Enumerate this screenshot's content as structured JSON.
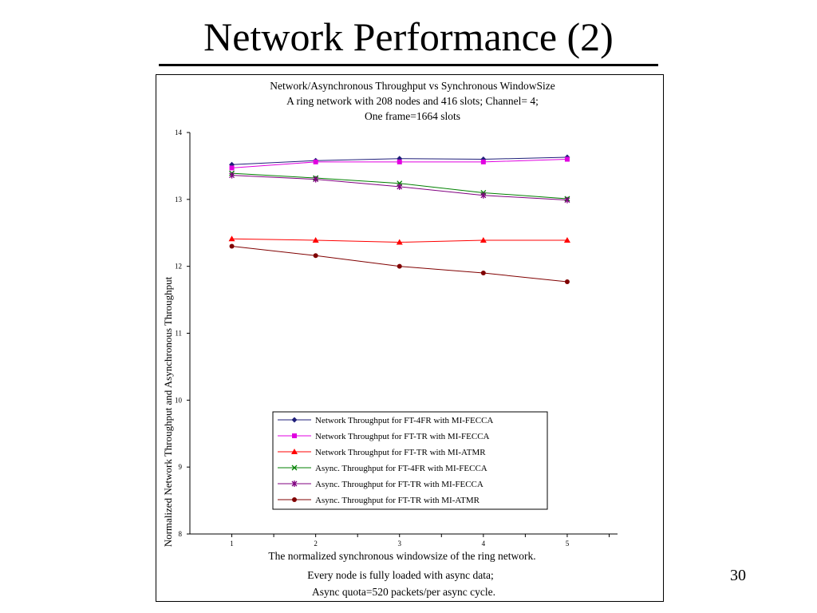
{
  "slide": {
    "title": "Network Performance (2)",
    "page_number": "30"
  },
  "chart_data": {
    "type": "line",
    "title_lines": [
      "Network/Asynchronous Throughput vs Synchronous WindowSize",
      "A ring network with 208 nodes and 416 slots; Channel= 4;",
      "One frame=1664 slots"
    ],
    "xlabel": "The normalized synchronous windowsize of the ring network.",
    "ylabel": "Normalized Network Throughput and Asynchronous Throughput",
    "footnote_lines": [
      "Every node is fully loaded with async data;",
      "Async quota=520 packets/per async cycle."
    ],
    "x": [
      1,
      2,
      3,
      4,
      5
    ],
    "xlim": [
      0.5,
      5.6
    ],
    "ylim": [
      8,
      14
    ],
    "xticks": [
      "1",
      "2",
      "3",
      "4",
      "5"
    ],
    "yticks": [
      "8",
      "9",
      "10",
      "11",
      "12",
      "13",
      "14"
    ],
    "grid": false,
    "legend_position": "lower-center",
    "series": [
      {
        "name": "Network Throughput for FT-4FR with MI-FECCA",
        "values": [
          13.52,
          13.58,
          13.61,
          13.6,
          13.63
        ],
        "color": "#1f1f7a",
        "marker": "diamond"
      },
      {
        "name": "Network Throughput for FT-TR with MI-FECCA",
        "values": [
          13.47,
          13.56,
          13.56,
          13.56,
          13.6
        ],
        "color": "#e000e0",
        "marker": "square"
      },
      {
        "name": "Network Throughput for FT-TR with MI-ATMR",
        "values": [
          12.41,
          12.39,
          12.36,
          12.39,
          12.39
        ],
        "color": "#ff0000",
        "marker": "triangle"
      },
      {
        "name": "Async. Throughput for FT-4FR with MI-FECCA",
        "values": [
          13.39,
          13.32,
          13.24,
          13.1,
          13.01
        ],
        "color": "#008000",
        "marker": "x"
      },
      {
        "name": "Async. Throughput for FT-TR with MI-FECCA",
        "values": [
          13.36,
          13.3,
          13.19,
          13.06,
          12.99
        ],
        "color": "#800080",
        "marker": "star"
      },
      {
        "name": "Async. Throughput for FT-TR with MI-ATMR",
        "values": [
          12.3,
          12.16,
          12.0,
          11.9,
          11.77
        ],
        "color": "#800000",
        "marker": "circle"
      }
    ]
  }
}
